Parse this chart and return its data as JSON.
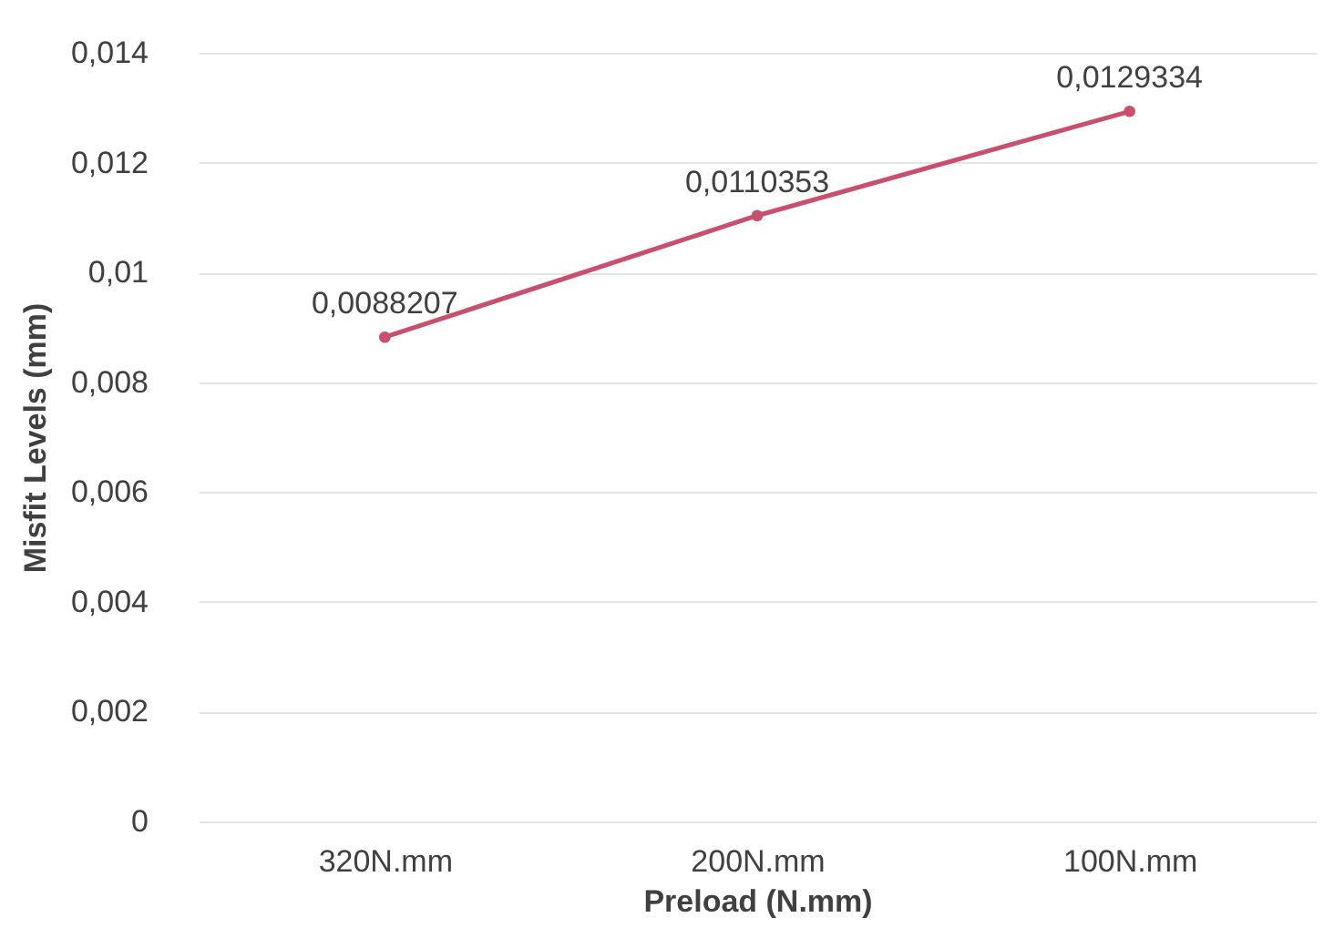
{
  "chart_data": {
    "type": "line",
    "xlabel": "Preload (N.mm)",
    "ylabel": "Misfit Levels (mm)",
    "categories": [
      "320N.mm",
      "200N.mm",
      "100N.mm"
    ],
    "series": [
      {
        "color": "#c8506e",
        "values": [
          0.0088207,
          0.0110353,
          0.0129334
        ],
        "value_labels": [
          "0,0088207",
          "0,0110353",
          "0,0129334"
        ]
      }
    ],
    "ylim": [
      0,
      0.014
    ],
    "yticks": [
      0,
      {
        "value": 0.002,
        "label": "0,002"
      },
      {
        "value": 0.004,
        "label": "0,004"
      },
      {
        "value": 0.006,
        "label": "0,006"
      },
      {
        "value": 0.008,
        "label": "0,008"
      },
      {
        "value": 0.01,
        "label": "0,01"
      },
      {
        "value": 0.012,
        "label": "0,012"
      },
      {
        "value": 0.014,
        "label": "0,014"
      }
    ],
    "grid": "y",
    "marker": "circle",
    "line_style": "solid"
  }
}
